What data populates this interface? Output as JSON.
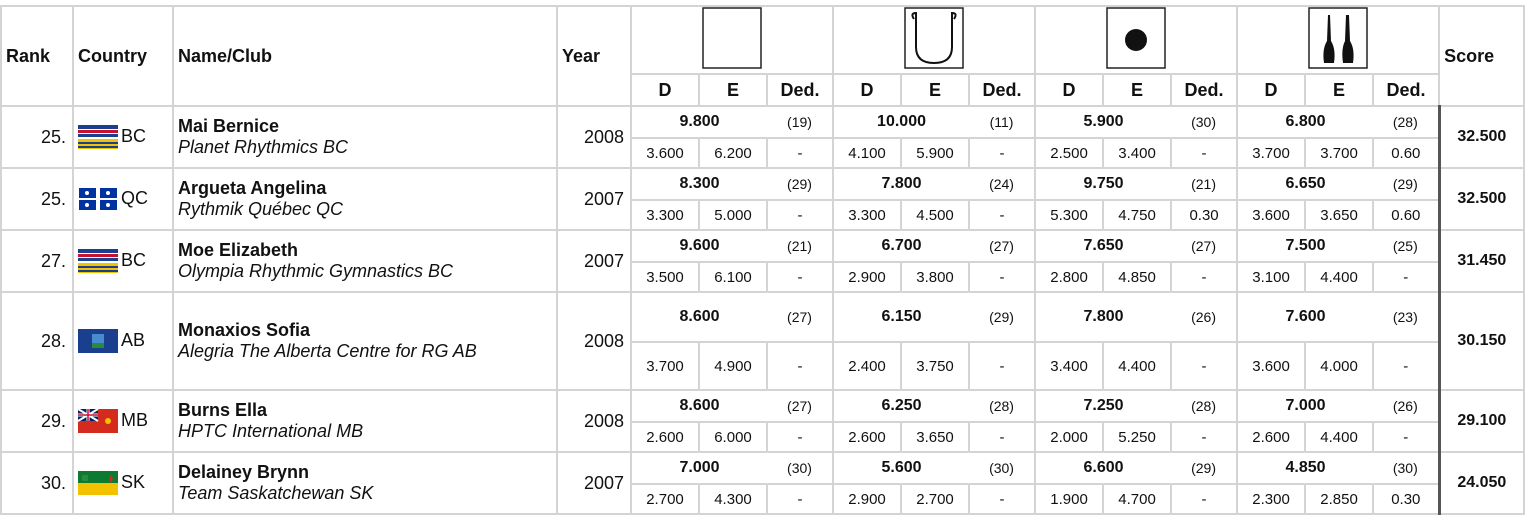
{
  "table": {
    "header": {
      "rank": "Rank",
      "country": "Country",
      "name": "Name/Club",
      "year": "Year",
      "score": "Score",
      "sub": [
        "D",
        "E",
        "Ded."
      ]
    },
    "rows": [
      {
        "rank": "25.",
        "province": "BC",
        "name": "Mai Bernice",
        "club": "Planet Rhythmics BC",
        "year": "2008",
        "apparatus": [
          {
            "total": "9.800",
            "place": "(19)",
            "d": "3.600",
            "e": "6.200",
            "ded": "-"
          },
          {
            "total": "10.000",
            "place": "(11)",
            "d": "4.100",
            "e": "5.900",
            "ded": "-"
          },
          {
            "total": "5.900",
            "place": "(30)",
            "d": "2.500",
            "e": "3.400",
            "ded": "-"
          },
          {
            "total": "6.800",
            "place": "(28)",
            "d": "3.700",
            "e": "3.700",
            "ded": "0.60"
          }
        ],
        "score": "32.500"
      },
      {
        "rank": "25.",
        "province": "QC",
        "name": "Argueta Angelina",
        "club": "Rythmik Québec QC",
        "year": "2007",
        "apparatus": [
          {
            "total": "8.300",
            "place": "(29)",
            "d": "3.300",
            "e": "5.000",
            "ded": "-"
          },
          {
            "total": "7.800",
            "place": "(24)",
            "d": "3.300",
            "e": "4.500",
            "ded": "-"
          },
          {
            "total": "9.750",
            "place": "(21)",
            "d": "5.300",
            "e": "4.750",
            "ded": "0.30"
          },
          {
            "total": "6.650",
            "place": "(29)",
            "d": "3.600",
            "e": "3.650",
            "ded": "0.60"
          }
        ],
        "score": "32.500"
      },
      {
        "rank": "27.",
        "province": "BC",
        "name": "Moe Elizabeth",
        "club": "Olympia Rhythmic Gymnastics BC",
        "year": "2007",
        "apparatus": [
          {
            "total": "9.600",
            "place": "(21)",
            "d": "3.500",
            "e": "6.100",
            "ded": "-"
          },
          {
            "total": "6.700",
            "place": "(27)",
            "d": "2.900",
            "e": "3.800",
            "ded": "-"
          },
          {
            "total": "7.650",
            "place": "(27)",
            "d": "2.800",
            "e": "4.850",
            "ded": "-"
          },
          {
            "total": "7.500",
            "place": "(25)",
            "d": "3.100",
            "e": "4.400",
            "ded": "-"
          }
        ],
        "score": "31.450"
      },
      {
        "rank": "28.",
        "province": "AB",
        "name": "Monaxios Sofia",
        "club": "Alegria The Alberta Centre for RG AB",
        "year": "2008",
        "apparatus": [
          {
            "total": "8.600",
            "place": "(27)",
            "d": "3.700",
            "e": "4.900",
            "ded": "-"
          },
          {
            "total": "6.150",
            "place": "(29)",
            "d": "2.400",
            "e": "3.750",
            "ded": "-"
          },
          {
            "total": "7.800",
            "place": "(26)",
            "d": "3.400",
            "e": "4.400",
            "ded": "-"
          },
          {
            "total": "7.600",
            "place": "(23)",
            "d": "3.600",
            "e": "4.000",
            "ded": "-"
          }
        ],
        "score": "30.150"
      },
      {
        "rank": "29.",
        "province": "MB",
        "name": "Burns Ella",
        "club": "HPTC International MB",
        "year": "2008",
        "apparatus": [
          {
            "total": "8.600",
            "place": "(27)",
            "d": "2.600",
            "e": "6.000",
            "ded": "-"
          },
          {
            "total": "6.250",
            "place": "(28)",
            "d": "2.600",
            "e": "3.650",
            "ded": "-"
          },
          {
            "total": "7.250",
            "place": "(28)",
            "d": "2.000",
            "e": "5.250",
            "ded": "-"
          },
          {
            "total": "7.000",
            "place": "(26)",
            "d": "2.600",
            "e": "4.400",
            "ded": "-"
          }
        ],
        "score": "29.100"
      },
      {
        "rank": "30.",
        "province": "SK",
        "name": "Delainey Brynn",
        "club": "Team Saskatchewan SK",
        "year": "2007",
        "apparatus": [
          {
            "total": "7.000",
            "place": "(30)",
            "d": "2.700",
            "e": "4.300",
            "ded": "-"
          },
          {
            "total": "5.600",
            "place": "(30)",
            "d": "2.900",
            "e": "2.700",
            "ded": "-"
          },
          {
            "total": "6.600",
            "place": "(29)",
            "d": "1.900",
            "e": "4.700",
            "ded": "-"
          },
          {
            "total": "4.850",
            "place": "(30)",
            "d": "2.300",
            "e": "2.850",
            "ded": "0.30"
          }
        ],
        "score": "24.050"
      }
    ]
  }
}
